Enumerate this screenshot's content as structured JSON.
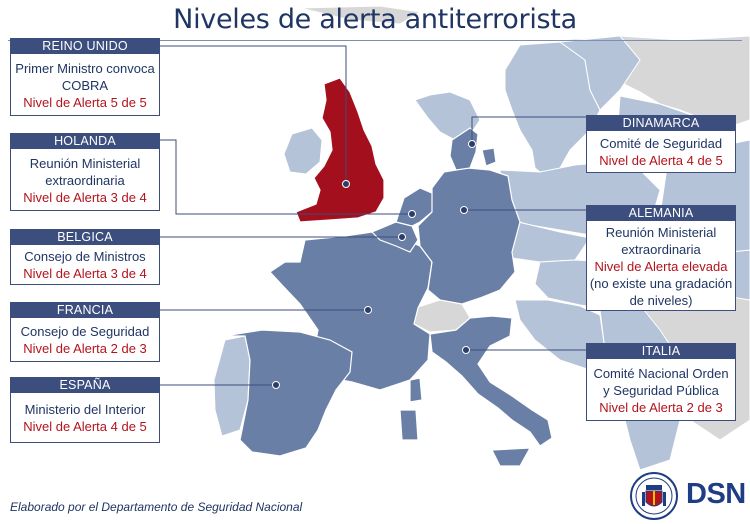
{
  "title": "Niveles de alerta antiterrorista",
  "credit": "Elaborado por el Departamento de Seguridad Nacional",
  "logo_text": "DSN",
  "colors": {
    "header": "#3c4e7e",
    "alert_text": "#b3131d",
    "body_text": "#1f3563",
    "uk_fill": "#a30f1c",
    "featured_countries": "#6a7fa6",
    "other_countries": "#b4c3d8",
    "non_eu": "#d7d7d7",
    "sea": "#ffffff"
  },
  "countries": {
    "reino_unido": {
      "name": "REINO UNIDO",
      "line1": "Primer Ministro convoca",
      "line2": "COBRA",
      "level": "Nivel de Alerta 5 de 5"
    },
    "holanda": {
      "name": "HOLANDA",
      "line1": "Reunión Ministerial",
      "line2": "extraordinaria",
      "level": "Nivel de Alerta 3 de 4"
    },
    "belgica": {
      "name": "BELGICA",
      "line1": "Consejo de Ministros",
      "level": "Nivel de Alerta 3 de 4"
    },
    "francia": {
      "name": "FRANCIA",
      "line1": "Consejo de Seguridad",
      "level": "Nivel de Alerta 2 de 3"
    },
    "espana": {
      "name": "ESPAÑA",
      "line1": "Ministerio del Interior",
      "level": "Nivel de Alerta 4 de 5"
    },
    "dinamarca": {
      "name": "DINAMARCA",
      "line1": "Comité de Seguridad",
      "level": "Nivel de Alerta 4 de 5"
    },
    "alemania": {
      "name": "ALEMANIA",
      "line1": "Reunión Ministerial",
      "line2": "extraordinaria",
      "level": "Nivel de Alerta elevada",
      "line3": "(no existe una gradación",
      "line4": "de niveles)"
    },
    "italia": {
      "name": "ITALIA",
      "line1": "Comité Nacional Orden",
      "line2": "y Seguridad Pública",
      "level": "Nivel de Alerta 2 de 3"
    }
  }
}
